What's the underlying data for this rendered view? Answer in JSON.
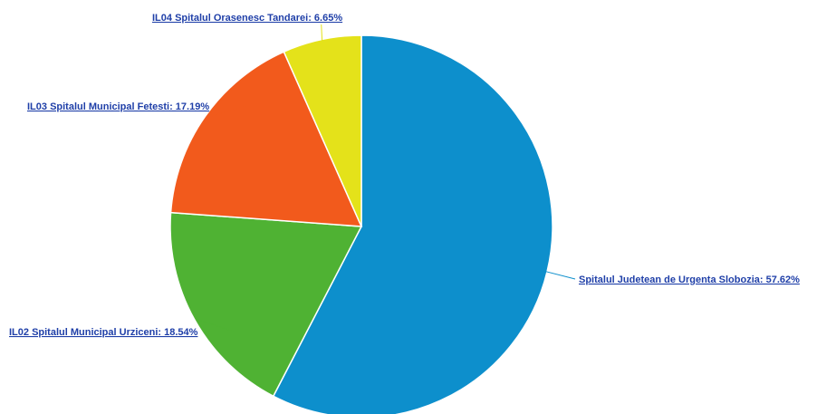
{
  "chart_data": {
    "type": "pie",
    "title": "",
    "slices": [
      {
        "name": "Spitalul Judetean de Urgenta Slobozia",
        "value": 57.62,
        "label": "Spitalul Judetean de Urgenta Slobozia: 57.62%",
        "color": "#0d8fcc"
      },
      {
        "name": "IL02 Spitalul Municipal Urziceni",
        "value": 18.54,
        "label": "IL02 Spitalul Municipal Urziceni: 18.54%",
        "color": "#4fb233"
      },
      {
        "name": "IL03 Spitalul Municipal Fetesti",
        "value": 17.19,
        "label": "IL03 Spitalul Municipal Fetesti: 17.19%",
        "color": "#f25a1c"
      },
      {
        "name": "IL04 Spitalul Orasenesc Tandarei",
        "value": 6.65,
        "label": "IL04 Spitalul Orasenesc Tandarei: 6.65%",
        "color": "#e4e21a"
      }
    ],
    "label_color": "#1f3fa8"
  }
}
